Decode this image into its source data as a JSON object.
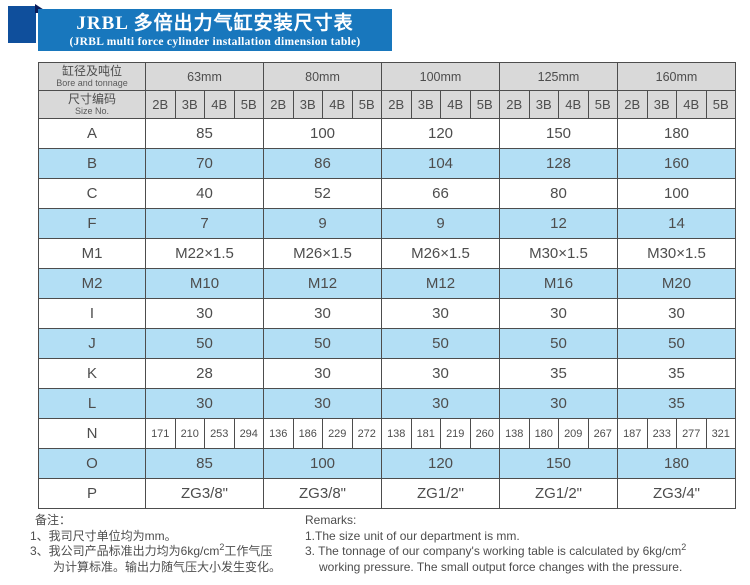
{
  "banner": {
    "title_zh": "JRBL 多倍出力气缸安装尺寸表",
    "title_en": "(JRBL multi force cylinder installation dimension table)"
  },
  "table": {
    "corner": {
      "bore_zh": "缸径及吨位",
      "bore_en": "Bore and tonnage",
      "size_zh": "尺寸编码",
      "size_en": "Size No."
    },
    "bores": [
      "63mm",
      "80mm",
      "100mm",
      "125mm",
      "160mm"
    ],
    "size_codes": [
      "2B",
      "3B",
      "4B",
      "5B"
    ],
    "rows": [
      {
        "label": "A",
        "type": "merged",
        "values": [
          "85",
          "100",
          "120",
          "150",
          "180"
        ]
      },
      {
        "label": "B",
        "type": "merged",
        "values": [
          "70",
          "86",
          "104",
          "128",
          "160"
        ]
      },
      {
        "label": "C",
        "type": "merged",
        "values": [
          "40",
          "52",
          "66",
          "80",
          "100"
        ]
      },
      {
        "label": "F",
        "type": "merged",
        "values": [
          "7",
          "9",
          "9",
          "12",
          "14"
        ]
      },
      {
        "label": "M1",
        "type": "merged",
        "values": [
          "M22×1.5",
          "M26×1.5",
          "M26×1.5",
          "M30×1.5",
          "M30×1.5"
        ]
      },
      {
        "label": "M2",
        "type": "merged",
        "values": [
          "M10",
          "M12",
          "M12",
          "M16",
          "M20"
        ]
      },
      {
        "label": "I",
        "type": "merged",
        "values": [
          "30",
          "30",
          "30",
          "30",
          "30"
        ]
      },
      {
        "label": "J",
        "type": "merged",
        "values": [
          "50",
          "50",
          "50",
          "50",
          "50"
        ]
      },
      {
        "label": "K",
        "type": "merged",
        "values": [
          "28",
          "30",
          "30",
          "35",
          "35"
        ]
      },
      {
        "label": "L",
        "type": "merged",
        "values": [
          "30",
          "30",
          "30",
          "30",
          "35"
        ]
      },
      {
        "label": "N",
        "type": "split",
        "values": [
          [
            "171",
            "210",
            "253",
            "294"
          ],
          [
            "136",
            "186",
            "229",
            "272"
          ],
          [
            "138",
            "181",
            "219",
            "260"
          ],
          [
            "138",
            "180",
            "209",
            "267"
          ],
          [
            "187",
            "233",
            "277",
            "321"
          ]
        ]
      },
      {
        "label": "O",
        "type": "merged",
        "values": [
          "85",
          "100",
          "120",
          "150",
          "180"
        ]
      },
      {
        "label": "P",
        "type": "merged",
        "values": [
          "ZG3/8\"",
          "ZG3/8\"",
          "ZG1/2\"",
          "ZG1/2\"",
          "ZG3/4\""
        ]
      }
    ]
  },
  "notes_zh": {
    "heading": "备注：",
    "line1": "1、我司尺寸单位均为mm。",
    "line2_pre": "3、我公司产品标准出力均为6kg/cm",
    "line2_sup": "2",
    "line2_post": "工作气压",
    "line3": "为计算标准。输出力随气压大小发生变化。"
  },
  "notes_en": {
    "heading": "Remarks:",
    "line1": "1.The size unit of our department is mm.",
    "line2_pre": "3. The tonnage of our company's working table is calculated by 6kg/cm",
    "line2_sup": "2",
    "line3": "working pressure. The small output force changes with the pressure."
  },
  "colors": {
    "title_bar": "#1877bd",
    "ribbon_square": "#0f4f9c",
    "ribbon_fold": "#0a1c5a",
    "header_bg": "#d9d9d9",
    "row_highlight": "#b3dff5",
    "grid_line": "#4d4d4d",
    "text": "#4d4d4d"
  }
}
